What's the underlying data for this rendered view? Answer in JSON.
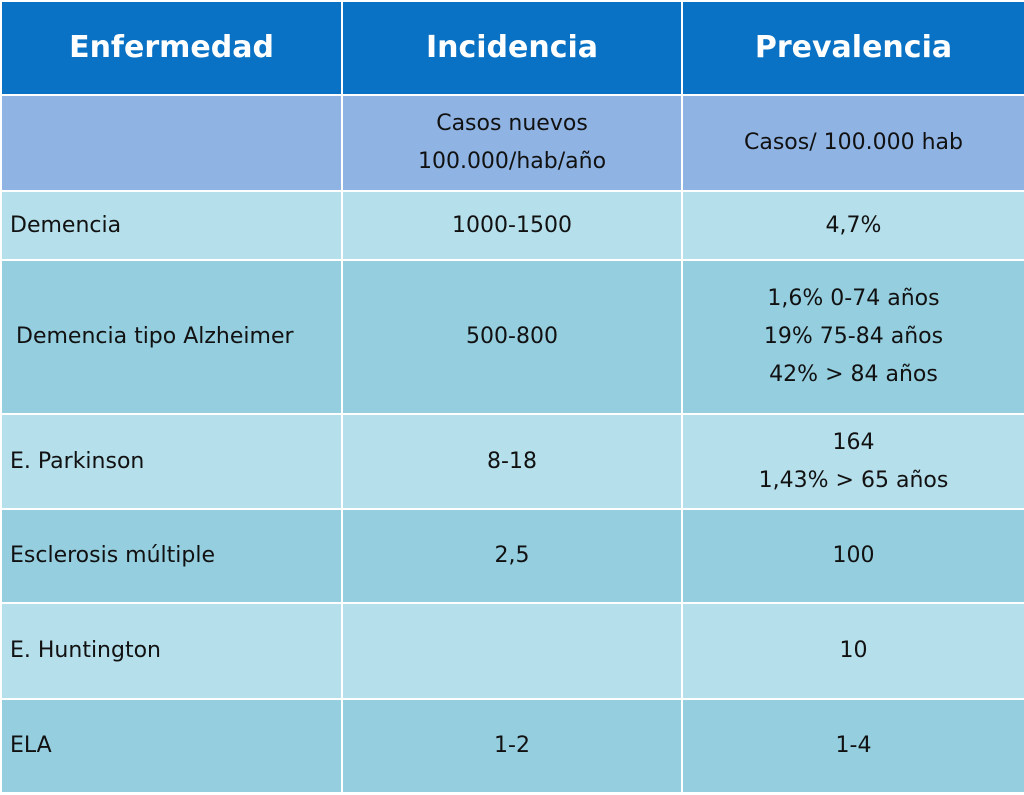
{
  "table": {
    "headers": [
      "Enfermedad",
      "Incidencia",
      "Prevalencia"
    ],
    "subheader": {
      "enfermedad": "",
      "incidencia": [
        "Casos nuevos",
        "100.000/hab/año"
      ],
      "prevalencia": "Casos/ 100.000 hab"
    },
    "rows": [
      {
        "enfermedad": "Demencia",
        "incidencia": "1000-1500",
        "prevalencia": [
          "4,7%"
        ]
      },
      {
        "enfermedad": "Demencia tipo Alzheimer",
        "incidencia": "500-800",
        "prevalencia": [
          "1,6% 0-74 años",
          "19% 75-84 años",
          "42% > 84 años"
        ]
      },
      {
        "enfermedad": "E. Parkinson",
        "incidencia": "8-18",
        "prevalencia": [
          "164",
          "1,43% > 65 años"
        ]
      },
      {
        "enfermedad": "Esclerosis múltiple",
        "incidencia": "2,5",
        "prevalencia": [
          "100"
        ]
      },
      {
        "enfermedad": "E. Huntington",
        "incidencia": "",
        "prevalencia": [
          "10"
        ]
      },
      {
        "enfermedad": "ELA",
        "incidencia": "1-2",
        "prevalencia": [
          "1-4"
        ]
      }
    ]
  },
  "colors": {
    "header_bg": "#0a72c4",
    "subheader_bg": "#8fb3e3",
    "row_light": "#b5dfea",
    "row_dark": "#95cedf",
    "border": "#ffffff"
  }
}
